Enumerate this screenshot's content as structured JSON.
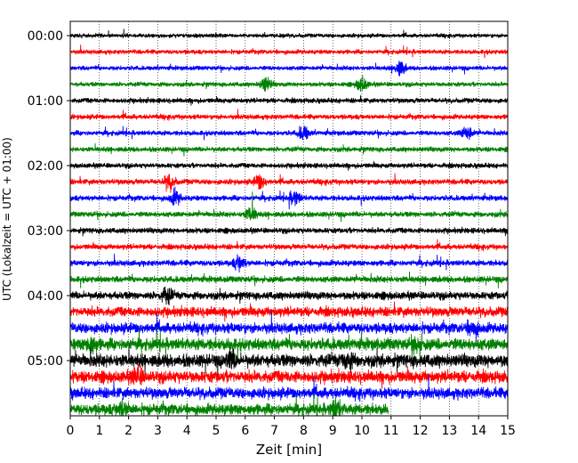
{
  "chart_data": {
    "type": "line",
    "title": "",
    "xlabel": "Zeit  [min]",
    "ylabel": "UTC (Lokalzeit = UTC + 01:00)",
    "xlim": [
      0,
      15
    ],
    "x_ticks": [
      "0",
      "1",
      "2",
      "3",
      "4",
      "5",
      "6",
      "7",
      "8",
      "9",
      "10",
      "11",
      "12",
      "13",
      "14",
      "15"
    ],
    "y_tick_labels": [
      "00:00",
      "01:00",
      "02:00",
      "03:00",
      "04:00",
      "05:00"
    ],
    "grid": "vertical dotted lines at each minute",
    "minutes_per_row": 15,
    "row_colors": [
      "#000000",
      "#ff0000",
      "#0000ff",
      "#008000"
    ],
    "rows": [
      {
        "time": "00:00",
        "color": "black",
        "amplitude": 0.8,
        "bursts": []
      },
      {
        "time": "00:15",
        "color": "red",
        "amplitude": 0.9,
        "bursts": []
      },
      {
        "time": "00:30",
        "color": "blue",
        "amplitude": 0.9,
        "bursts": [
          11.3
        ]
      },
      {
        "time": "00:45",
        "color": "green",
        "amplitude": 0.9,
        "bursts": [
          6.7,
          10.0
        ]
      },
      {
        "time": "01:00",
        "color": "black",
        "amplitude": 1.0,
        "bursts": []
      },
      {
        "time": "01:15",
        "color": "red",
        "amplitude": 1.0,
        "bursts": []
      },
      {
        "time": "01:30",
        "color": "blue",
        "amplitude": 1.0,
        "bursts": [
          8.0,
          13.6
        ]
      },
      {
        "time": "01:45",
        "color": "green",
        "amplitude": 1.0,
        "bursts": []
      },
      {
        "time": "02:00",
        "color": "black",
        "amplitude": 1.0,
        "bursts": []
      },
      {
        "time": "02:15",
        "color": "red",
        "amplitude": 1.1,
        "bursts": [
          3.4,
          6.5
        ]
      },
      {
        "time": "02:30",
        "color": "blue",
        "amplitude": 1.1,
        "bursts": [
          3.6,
          7.7
        ]
      },
      {
        "time": "02:45",
        "color": "green",
        "amplitude": 1.1,
        "bursts": [
          6.2
        ]
      },
      {
        "time": "03:00",
        "color": "black",
        "amplitude": 1.1,
        "bursts": []
      },
      {
        "time": "03:15",
        "color": "red",
        "amplitude": 1.1,
        "bursts": []
      },
      {
        "time": "03:30",
        "color": "blue",
        "amplitude": 1.2,
        "bursts": [
          5.8
        ]
      },
      {
        "time": "03:45",
        "color": "green",
        "amplitude": 1.3,
        "bursts": []
      },
      {
        "time": "04:00",
        "color": "black",
        "amplitude": 1.6,
        "bursts": [
          3.3
        ]
      },
      {
        "time": "04:15",
        "color": "red",
        "amplitude": 2.0,
        "bursts": []
      },
      {
        "time": "04:30",
        "color": "blue",
        "amplitude": 2.2,
        "bursts": [
          13.8
        ]
      },
      {
        "time": "04:45",
        "color": "green",
        "amplitude": 2.5,
        "bursts": [
          0.7,
          11.9
        ]
      },
      {
        "time": "05:00",
        "color": "black",
        "amplitude": 2.7,
        "bursts": [
          5.5,
          9.5
        ]
      },
      {
        "time": "05:15",
        "color": "red",
        "amplitude": 2.5,
        "bursts": [
          2.3
        ]
      },
      {
        "time": "05:30",
        "color": "blue",
        "amplitude": 2.3,
        "bursts": []
      },
      {
        "time": "05:45",
        "color": "green",
        "amplitude": 2.3,
        "bursts": [
          1.8,
          9.1
        ],
        "end_minute": 10.9
      }
    ]
  }
}
